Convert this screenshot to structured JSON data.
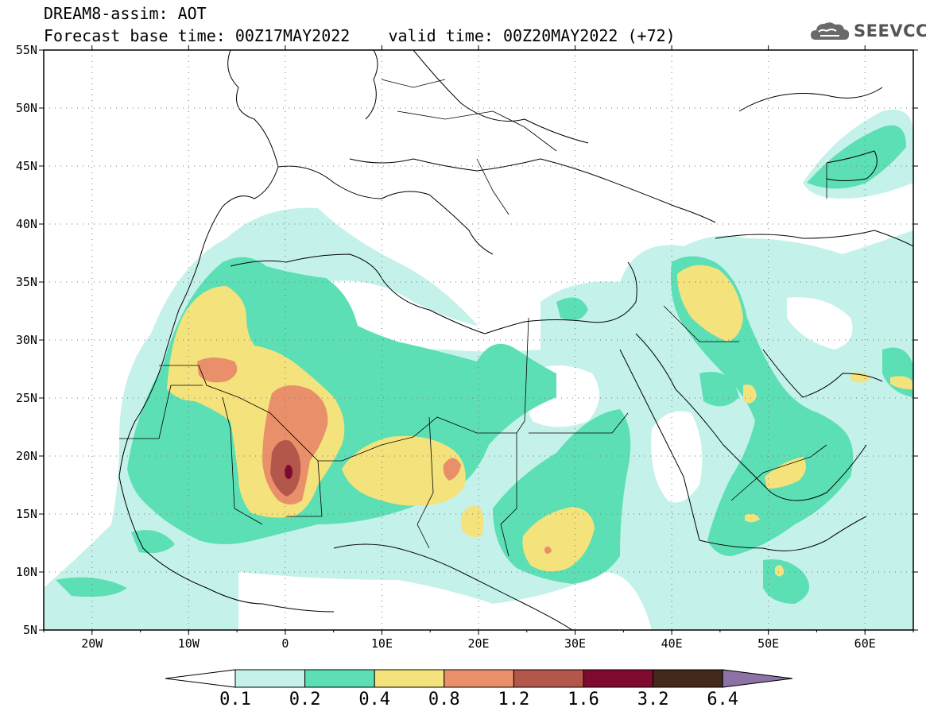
{
  "header": {
    "line1": "DREAM8-assim: AOT",
    "line2": "Forecast base time: 00Z17MAY2022    valid time: 00Z20MAY2022 (+72)"
  },
  "logo": {
    "text": "SEEVCCC",
    "icon": "cloud-icon"
  },
  "map": {
    "lat_labels": [
      "55N",
      "50N",
      "45N",
      "40N",
      "35N",
      "30N",
      "25N",
      "20N",
      "15N",
      "10N",
      "5N"
    ],
    "lon_labels": [
      "20W",
      "10W",
      "0",
      "10E",
      "20E",
      "30E",
      "40E",
      "50E",
      "60E"
    ],
    "lat_range": [
      5,
      55
    ],
    "lon_range": [
      -25,
      65
    ],
    "gridlines": "dotted"
  },
  "colorbar": {
    "labels": [
      "0.1",
      "0.2",
      "0.4",
      "0.8",
      "1.2",
      "1.6",
      "3.2",
      "6.4"
    ],
    "colors": [
      "#c4f2ea",
      "#5ddfb5",
      "#f4e37c",
      "#e9906a",
      "#b3574b",
      "#7e0b2d",
      "#43291a",
      "#8d72a8"
    ]
  }
}
